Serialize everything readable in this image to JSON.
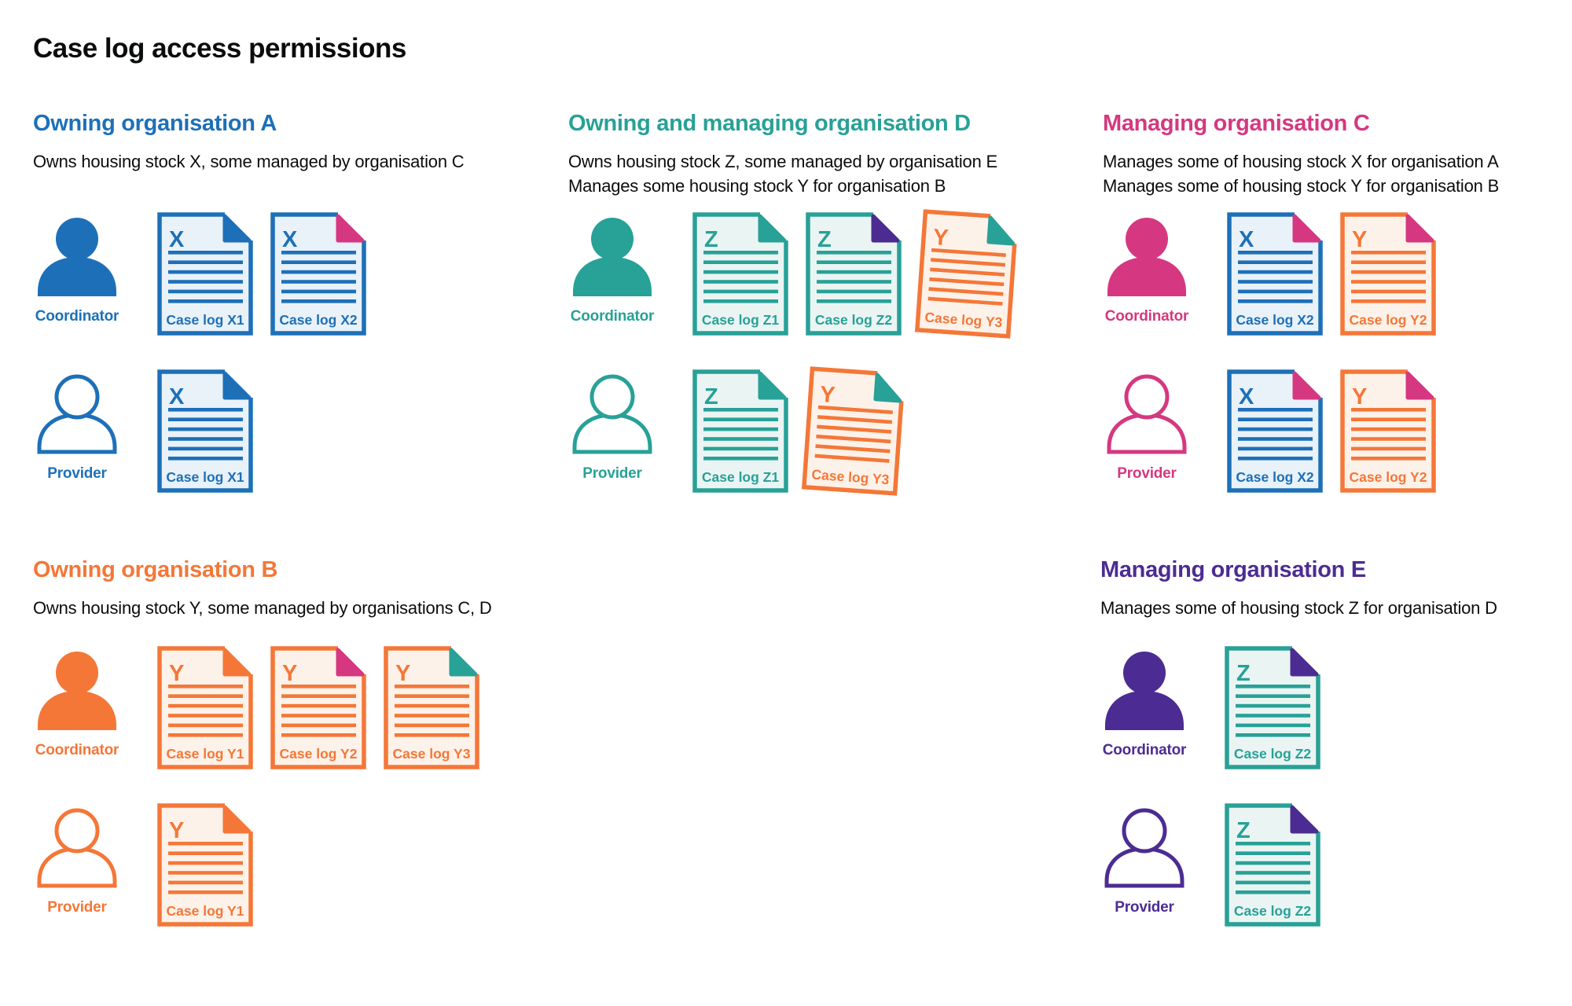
{
  "title": "Case log access permissions",
  "colors": {
    "blue": "#1d70b8",
    "teal": "#28a197",
    "orange": "#f47738",
    "pink": "#d53880",
    "purple": "#4c2c92",
    "text": "#0b0c0c",
    "blue_fill": "#e9f1f9",
    "teal_fill": "#eaf5f3",
    "orange_fill": "#fdf2e9"
  },
  "icons": {
    "coordinator": "person-filled-icon",
    "provider": "person-outline-icon",
    "document": "case-log-document-icon"
  },
  "sections": [
    {
      "id": "owning-organisation-a",
      "heading": "Owning organisation A",
      "color": "blue",
      "desc": [
        "Owns housing stock X, some managed by organisation C"
      ],
      "rows": [
        {
          "role": "Coordinator",
          "docs": [
            {
              "letter": "X",
              "label": "Case log X1",
              "color": "blue",
              "fold": "blue",
              "tilted": false
            },
            {
              "letter": "X",
              "label": "Case log X2",
              "color": "blue",
              "fold": "pink",
              "tilted": false
            }
          ]
        },
        {
          "role": "Provider",
          "docs": [
            {
              "letter": "X",
              "label": "Case log X1",
              "color": "blue",
              "fold": "blue",
              "tilted": false
            }
          ]
        }
      ]
    },
    {
      "id": "owning-and-managing-organisation-d",
      "heading": "Owning and managing organisation D",
      "color": "teal",
      "desc": [
        "Owns housing stock Z, some managed by organisation E",
        "Manages some housing stock Y for organisation B"
      ],
      "rows": [
        {
          "role": "Coordinator",
          "docs": [
            {
              "letter": "Z",
              "label": "Case log Z1",
              "color": "teal",
              "fold": "teal",
              "tilted": false
            },
            {
              "letter": "Z",
              "label": "Case log Z2",
              "color": "teal",
              "fold": "purple",
              "tilted": false
            },
            {
              "letter": "Y",
              "label": "Case log Y3",
              "color": "orange",
              "fold": "teal",
              "tilted": true
            }
          ]
        },
        {
          "role": "Provider",
          "docs": [
            {
              "letter": "Z",
              "label": "Case log Z1",
              "color": "teal",
              "fold": "teal",
              "tilted": false
            },
            {
              "letter": "Y",
              "label": "Case log Y3",
              "color": "orange",
              "fold": "teal",
              "tilted": true
            }
          ]
        }
      ]
    },
    {
      "id": "managing-organisation-c",
      "heading": "Managing organisation C",
      "color": "pink",
      "desc": [
        "Manages some of housing stock X for organisation A",
        "Manages some of housing stock Y for organisation B"
      ],
      "rows": [
        {
          "role": "Coordinator",
          "docs": [
            {
              "letter": "X",
              "label": "Case log X2",
              "color": "blue",
              "fold": "pink",
              "tilted": false
            },
            {
              "letter": "Y",
              "label": "Case log Y2",
              "color": "orange",
              "fold": "pink",
              "tilted": false
            }
          ]
        },
        {
          "role": "Provider",
          "docs": [
            {
              "letter": "X",
              "label": "Case log X2",
              "color": "blue",
              "fold": "pink",
              "tilted": false
            },
            {
              "letter": "Y",
              "label": "Case log Y2",
              "color": "orange",
              "fold": "pink",
              "tilted": false
            }
          ]
        }
      ]
    },
    {
      "id": "owning-organisation-b",
      "heading": "Owning organisation B",
      "color": "orange",
      "desc": [
        "Owns housing stock Y, some managed by organisations C, D"
      ],
      "rows": [
        {
          "role": "Coordinator",
          "docs": [
            {
              "letter": "Y",
              "label": "Case log Y1",
              "color": "orange",
              "fold": "orange",
              "tilted": false
            },
            {
              "letter": "Y",
              "label": "Case log Y2",
              "color": "orange",
              "fold": "pink",
              "tilted": false
            },
            {
              "letter": "Y",
              "label": "Case log Y3",
              "color": "orange",
              "fold": "teal",
              "tilted": false
            }
          ]
        },
        {
          "role": "Provider",
          "docs": [
            {
              "letter": "Y",
              "label": "Case log Y1",
              "color": "orange",
              "fold": "orange",
              "tilted": false
            }
          ]
        }
      ]
    },
    {
      "id": "managing-organisation-e",
      "heading": "Managing organisation E",
      "color": "purple",
      "desc": [
        "Manages some of housing stock Z for organisation D"
      ],
      "rows": [
        {
          "role": "Coordinator",
          "docs": [
            {
              "letter": "Z",
              "label": "Case log Z2",
              "color": "teal",
              "fold": "purple",
              "tilted": false
            }
          ]
        },
        {
          "role": "Provider",
          "docs": [
            {
              "letter": "Z",
              "label": "Case log Z2",
              "color": "teal",
              "fold": "purple",
              "tilted": false
            }
          ]
        }
      ]
    }
  ]
}
